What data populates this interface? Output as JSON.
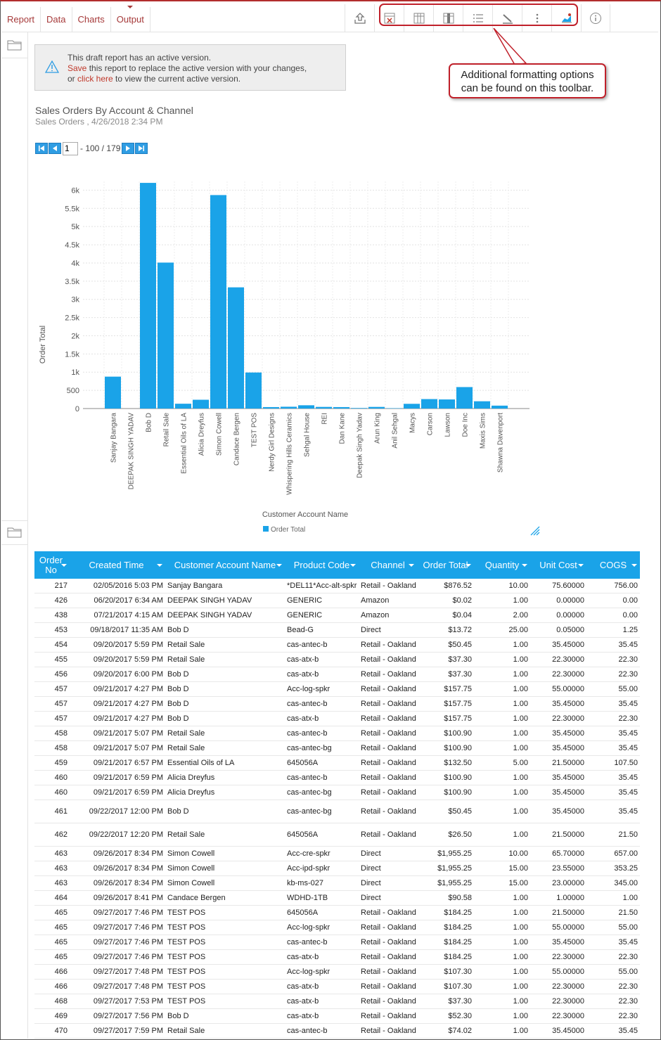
{
  "tabs": [
    "Report",
    "Data",
    "Charts",
    "Output"
  ],
  "toolbar_icons": [
    "export-icon",
    "remove-column-icon",
    "columns-icon",
    "column-properties-icon",
    "list-icon",
    "style-icon",
    "more-icon",
    "chart-style-icon",
    "info-icon"
  ],
  "callout": {
    "line1": "Additional formatting options",
    "line2": "can be found on this toolbar."
  },
  "notice": {
    "line1": "This draft report has an active version.",
    "save": "Save",
    "line2_rest": " this report to replace the active version with your changes,",
    "or": "or ",
    "click_here": "click here",
    "line3_rest": " to view the current active version."
  },
  "report": {
    "title": "Sales Orders By Account & Channel",
    "subtitle": "Sales Orders , 4/26/2018 2:34 PM"
  },
  "pager": {
    "page": "1",
    "range": "- 100 / 179"
  },
  "accent_color": "#1aa3e8",
  "chart_data": {
    "type": "bar",
    "xlabel": "Customer Account Name",
    "ylabel": "Order Total",
    "ylim": [
      0,
      6000
    ],
    "yticks": [
      "0",
      "500",
      "1k",
      "1.5k",
      "2k",
      "2.5k",
      "3k",
      "3.5k",
      "4k",
      "4.5k",
      "5k",
      "5.5k",
      "6k"
    ],
    "grid": true,
    "legend": "bottom",
    "series": [
      {
        "name": "Order Total",
        "color": "#1aa3e8",
        "values": [
          876.52,
          0.06,
          6200,
          4010,
          132.5,
          241.8,
          5865,
          3330,
          990,
          40,
          50,
          90,
          45,
          40,
          15,
          45,
          10,
          130,
          260,
          250,
          590,
          200,
          80
        ]
      }
    ],
    "categories": [
      "Sanjay Bangara",
      "DEEPAK SINGH YADAV",
      "Bob D",
      "Retail Sale",
      "Essential Oils of LA",
      "Alicia Dreyfus",
      "Simon Cowell",
      "Candace Bergen",
      "TEST POS",
      "Nerdy Girl Designs",
      "Whispering Hills Ceramics",
      "Sehgal House",
      "REI",
      "Dan Kane",
      "Deepak Singh Yadav",
      "Arun King",
      "Anil Sehgal",
      "Macys",
      "Carson",
      "Lawson",
      "Doe Inc",
      "Maxis Sims",
      "Shawna Davenport"
    ]
  },
  "table": {
    "headers": [
      "Order No",
      "Created Time",
      "Customer Account Name",
      "Product Code",
      "Channel",
      "Order Total",
      "Quantity",
      "Unit Cost",
      "COGS"
    ],
    "rows": [
      [
        "217",
        "02/05/2016 5:03 PM",
        "Sanjay Bangara",
        "*DEL11*Acc-alt-spkr",
        "Retail - Oakland",
        "$876.52",
        "10.00",
        "75.60000",
        "756.00"
      ],
      [
        "426",
        "06/20/2017 6:34 AM",
        "DEEPAK SINGH YADAV",
        "GENERIC",
        "Amazon",
        "$0.02",
        "1.00",
        "0.00000",
        "0.00"
      ],
      [
        "438",
        "07/21/2017 4:15 AM",
        "DEEPAK SINGH YADAV",
        "GENERIC",
        "Amazon",
        "$0.04",
        "2.00",
        "0.00000",
        "0.00"
      ],
      [
        "453",
        "09/18/2017 11:35 AM",
        "Bob D",
        "Bead-G",
        "Direct",
        "$13.72",
        "25.00",
        "0.05000",
        "1.25"
      ],
      [
        "454",
        "09/20/2017 5:59 PM",
        "Retail Sale",
        "cas-antec-b",
        "Retail - Oakland",
        "$50.45",
        "1.00",
        "35.45000",
        "35.45"
      ],
      [
        "455",
        "09/20/2017 5:59 PM",
        "Retail Sale",
        "cas-atx-b",
        "Retail - Oakland",
        "$37.30",
        "1.00",
        "22.30000",
        "22.30"
      ],
      [
        "456",
        "09/20/2017 6:00 PM",
        "Bob D",
        "cas-atx-b",
        "Retail - Oakland",
        "$37.30",
        "1.00",
        "22.30000",
        "22.30"
      ],
      [
        "457",
        "09/21/2017 4:27 PM",
        "Bob D",
        "Acc-log-spkr",
        "Retail - Oakland",
        "$157.75",
        "1.00",
        "55.00000",
        "55.00"
      ],
      [
        "457",
        "09/21/2017 4:27 PM",
        "Bob D",
        "cas-antec-b",
        "Retail - Oakland",
        "$157.75",
        "1.00",
        "35.45000",
        "35.45"
      ],
      [
        "457",
        "09/21/2017 4:27 PM",
        "Bob D",
        "cas-atx-b",
        "Retail - Oakland",
        "$157.75",
        "1.00",
        "22.30000",
        "22.30"
      ],
      [
        "458",
        "09/21/2017 5:07 PM",
        "Retail Sale",
        "cas-antec-b",
        "Retail - Oakland",
        "$100.90",
        "1.00",
        "35.45000",
        "35.45"
      ],
      [
        "458",
        "09/21/2017 5:07 PM",
        "Retail Sale",
        "cas-antec-bg",
        "Retail - Oakland",
        "$100.90",
        "1.00",
        "35.45000",
        "35.45"
      ],
      [
        "459",
        "09/21/2017 6:57 PM",
        "Essential Oils of LA",
        "645056A",
        "Retail - Oakland",
        "$132.50",
        "5.00",
        "21.50000",
        "107.50"
      ],
      [
        "460",
        "09/21/2017 6:59 PM",
        "Alicia Dreyfus",
        "cas-antec-b",
        "Retail - Oakland",
        "$100.90",
        "1.00",
        "35.45000",
        "35.45"
      ],
      [
        "460",
        "09/21/2017 6:59 PM",
        "Alicia Dreyfus",
        "cas-antec-bg",
        "Retail - Oakland",
        "$100.90",
        "1.00",
        "35.45000",
        "35.45"
      ],
      [
        "461",
        "09/22/2017 12:00 PM",
        "Bob D",
        "cas-antec-bg",
        "Retail - Oakland",
        "$50.45",
        "1.00",
        "35.45000",
        "35.45"
      ],
      [
        "462",
        "09/22/2017 12:20 PM",
        "Retail Sale",
        "645056A",
        "Retail - Oakland",
        "$26.50",
        "1.00",
        "21.50000",
        "21.50"
      ],
      [
        "463",
        "09/26/2017 8:34 PM",
        "Simon Cowell",
        "Acc-cre-spkr",
        "Direct",
        "$1,955.25",
        "10.00",
        "65.70000",
        "657.00"
      ],
      [
        "463",
        "09/26/2017 8:34 PM",
        "Simon Cowell",
        "Acc-ipd-spkr",
        "Direct",
        "$1,955.25",
        "15.00",
        "23.55000",
        "353.25"
      ],
      [
        "463",
        "09/26/2017 8:34 PM",
        "Simon Cowell",
        "kb-ms-027",
        "Direct",
        "$1,955.25",
        "15.00",
        "23.00000",
        "345.00"
      ],
      [
        "464",
        "09/26/2017 8:41 PM",
        "Candace Bergen",
        "WDHD-1TB",
        "Direct",
        "$90.58",
        "1.00",
        "1.00000",
        "1.00"
      ],
      [
        "465",
        "09/27/2017 7:46 PM",
        "TEST POS",
        "645056A",
        "Retail - Oakland",
        "$184.25",
        "1.00",
        "21.50000",
        "21.50"
      ],
      [
        "465",
        "09/27/2017 7:46 PM",
        "TEST POS",
        "Acc-log-spkr",
        "Retail - Oakland",
        "$184.25",
        "1.00",
        "55.00000",
        "55.00"
      ],
      [
        "465",
        "09/27/2017 7:46 PM",
        "TEST POS",
        "cas-antec-b",
        "Retail - Oakland",
        "$184.25",
        "1.00",
        "35.45000",
        "35.45"
      ],
      [
        "465",
        "09/27/2017 7:46 PM",
        "TEST POS",
        "cas-atx-b",
        "Retail - Oakland",
        "$184.25",
        "1.00",
        "22.30000",
        "22.30"
      ],
      [
        "466",
        "09/27/2017 7:48 PM",
        "TEST POS",
        "Acc-log-spkr",
        "Retail - Oakland",
        "$107.30",
        "1.00",
        "55.00000",
        "55.00"
      ],
      [
        "466",
        "09/27/2017 7:48 PM",
        "TEST POS",
        "cas-atx-b",
        "Retail - Oakland",
        "$107.30",
        "1.00",
        "22.30000",
        "22.30"
      ],
      [
        "468",
        "09/27/2017 7:53 PM",
        "TEST POS",
        "cas-atx-b",
        "Retail - Oakland",
        "$37.30",
        "1.00",
        "22.30000",
        "22.30"
      ],
      [
        "469",
        "09/27/2017 7:56 PM",
        "Bob D",
        "cas-atx-b",
        "Retail - Oakland",
        "$52.30",
        "1.00",
        "22.30000",
        "22.30"
      ],
      [
        "470",
        "09/27/2017 7:59 PM",
        "Retail Sale",
        "cas-antec-b",
        "Retail - Oakland",
        "$74.02",
        "1.00",
        "35.45000",
        "35.45"
      ]
    ]
  }
}
